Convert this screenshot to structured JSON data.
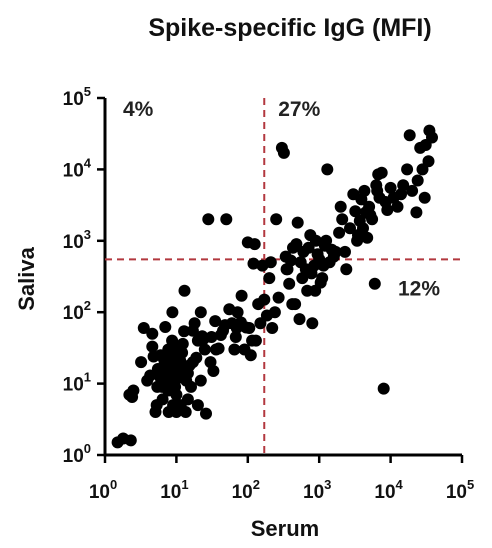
{
  "chart_data": {
    "type": "scatter",
    "title": "Spike-specific IgG (MFI)",
    "xlabel": "Serum",
    "ylabel": "Saliva",
    "xscale": "log",
    "yscale": "log",
    "xlim": [
      1,
      100000
    ],
    "ylim": [
      1,
      100000
    ],
    "x_ticks": [
      {
        "base": "10",
        "exp": "0"
      },
      {
        "base": "10",
        "exp": "1"
      },
      {
        "base": "10",
        "exp": "2"
      },
      {
        "base": "10",
        "exp": "3"
      },
      {
        "base": "10",
        "exp": "4"
      },
      {
        "base": "10",
        "exp": "5"
      }
    ],
    "y_ticks": [
      {
        "base": "10",
        "exp": "0"
      },
      {
        "base": "10",
        "exp": "1"
      },
      {
        "base": "10",
        "exp": "2"
      },
      {
        "base": "10",
        "exp": "3"
      },
      {
        "base": "10",
        "exp": "4"
      },
      {
        "base": "10",
        "exp": "5"
      }
    ],
    "thresholds": {
      "x": 170,
      "y": 550,
      "color": "#b2383f",
      "style": "dashed"
    },
    "quadrant_labels": [
      {
        "text": "4%",
        "quadrant": "top-left"
      },
      {
        "text": "27%",
        "quadrant": "top-right"
      },
      {
        "text": "12%",
        "quadrant": "bottom-right"
      }
    ],
    "marker_color": "#000000",
    "points": [
      [
        1.5,
        1.5
      ],
      [
        1.8,
        1.7
      ],
      [
        2.3,
        1.6
      ],
      [
        2.4,
        6.5
      ],
      [
        2.5,
        8
      ],
      [
        2.2,
        7
      ],
      [
        3.2,
        20
      ],
      [
        3.5,
        60
      ],
      [
        3.9,
        11
      ],
      [
        4.3,
        13
      ],
      [
        4.6,
        50
      ],
      [
        4.6,
        33
      ],
      [
        4.8,
        24
      ],
      [
        5.1,
        4
      ],
      [
        5.4,
        9
      ],
      [
        5.3,
        5
      ],
      [
        5.5,
        16
      ],
      [
        5.8,
        14
      ],
      [
        6.0,
        12
      ],
      [
        6.0,
        25
      ],
      [
        6.3,
        9
      ],
      [
        6.4,
        6
      ],
      [
        6.8,
        18
      ],
      [
        6.8,
        21
      ],
      [
        7.2,
        13
      ],
      [
        7.2,
        16
      ],
      [
        7.0,
        62
      ],
      [
        7.7,
        30
      ],
      [
        7.7,
        8
      ],
      [
        7.8,
        4
      ],
      [
        8.0,
        12
      ],
      [
        8.2,
        10
      ],
      [
        8.3,
        15
      ],
      [
        8.4,
        20
      ],
      [
        8.5,
        9
      ],
      [
        8.6,
        26
      ],
      [
        8.7,
        40
      ],
      [
        8.8,
        100
      ],
      [
        9.0,
        5
      ],
      [
        9.0,
        13
      ],
      [
        9.2,
        18
      ],
      [
        9.5,
        11
      ],
      [
        9.5,
        23
      ],
      [
        9.6,
        9
      ],
      [
        9.8,
        14
      ],
      [
        10.0,
        7
      ],
      [
        10.0,
        4
      ],
      [
        10.3,
        32
      ],
      [
        10.3,
        15
      ],
      [
        10.6,
        12
      ],
      [
        11.0,
        20
      ],
      [
        11.3,
        21
      ],
      [
        11.5,
        5
      ],
      [
        11.8,
        16
      ],
      [
        12.0,
        27
      ],
      [
        12.3,
        36
      ],
      [
        12.8,
        54
      ],
      [
        13.0,
        200
      ],
      [
        13.5,
        4
      ],
      [
        13.7,
        11
      ],
      [
        14.5,
        6
      ],
      [
        14.5,
        14
      ],
      [
        15.3,
        18
      ],
      [
        16.0,
        9
      ],
      [
        17.0,
        20
      ],
      [
        17.0,
        55
      ],
      [
        18.0,
        70
      ],
      [
        19.0,
        23
      ],
      [
        20.0,
        5
      ],
      [
        20.0,
        40
      ],
      [
        22.0,
        11
      ],
      [
        22.0,
        100
      ],
      [
        23.0,
        46
      ],
      [
        24.0,
        42
      ],
      [
        25.0,
        30
      ],
      [
        26.0,
        3.8
      ],
      [
        28.0,
        2000
      ],
      [
        30.0,
        20
      ],
      [
        31.0,
        45
      ],
      [
        33.0,
        15
      ],
      [
        35.0,
        75
      ],
      [
        36.0,
        30
      ],
      [
        39.0,
        31
      ],
      [
        42.0,
        48
      ],
      [
        45.0,
        55
      ],
      [
        48.0,
        66
      ],
      [
        50.0,
        2000
      ],
      [
        55.0,
        110
      ],
      [
        60.0,
        70
      ],
      [
        65.0,
        30
      ],
      [
        68.0,
        45
      ],
      [
        70.0,
        60
      ],
      [
        72.0,
        100
      ],
      [
        80.0,
        72
      ],
      [
        82.0,
        170
      ],
      [
        90.0,
        30
      ],
      [
        95.0,
        61
      ],
      [
        100.0,
        950
      ],
      [
        105.0,
        60
      ],
      [
        110.0,
        25
      ],
      [
        115.0,
        40
      ],
      [
        120.0,
        480
      ],
      [
        125.0,
        900
      ],
      [
        130.0,
        40
      ],
      [
        140.0,
        130
      ],
      [
        150.0,
        70
      ],
      [
        160.0,
        450
      ],
      [
        170.0,
        150
      ],
      [
        185.0,
        90
      ],
      [
        200.0,
        300
      ],
      [
        210.0,
        500
      ],
      [
        220.0,
        60
      ],
      [
        240.0,
        100
      ],
      [
        250.0,
        2000
      ],
      [
        270.0,
        160
      ],
      [
        300.0,
        20000
      ],
      [
        320.0,
        17000
      ],
      [
        340.0,
        600
      ],
      [
        350.0,
        400
      ],
      [
        360.0,
        400
      ],
      [
        380.0,
        250
      ],
      [
        400.0,
        530
      ],
      [
        420.0,
        130
      ],
      [
        430.0,
        800
      ],
      [
        460.0,
        130
      ],
      [
        480.0,
        900
      ],
      [
        500.0,
        1800
      ],
      [
        530.0,
        80
      ],
      [
        550.0,
        500
      ],
      [
        580.0,
        300
      ],
      [
        600.0,
        700
      ],
      [
        650.0,
        400
      ],
      [
        680.0,
        200
      ],
      [
        710.0,
        800
      ],
      [
        750.0,
        1200
      ],
      [
        780.0,
        350
      ],
      [
        800.0,
        70
      ],
      [
        850.0,
        450
      ],
      [
        880.0,
        200
      ],
      [
        900.0,
        1000
      ],
      [
        950.0,
        650
      ],
      [
        1000.0,
        550
      ],
      [
        1050.0,
        260
      ],
      [
        1100.0,
        300
      ],
      [
        1150.0,
        450
      ],
      [
        1200.0,
        850
      ],
      [
        1250.0,
        1000
      ],
      [
        1300.0,
        10000
      ],
      [
        1400.0,
        500
      ],
      [
        1500.0,
        750
      ],
      [
        1600.0,
        600
      ],
      [
        1700.0,
        700
      ],
      [
        1900.0,
        1300
      ],
      [
        2000.0,
        3000
      ],
      [
        2100.0,
        2000
      ],
      [
        2300.0,
        700
      ],
      [
        2400.0,
        400
      ],
      [
        2700.0,
        1500
      ],
      [
        3000.0,
        4500
      ],
      [
        3200.0,
        2600
      ],
      [
        3400.0,
        1000
      ],
      [
        3500.0,
        1200
      ],
      [
        3700.0,
        1900
      ],
      [
        3900.0,
        3800
      ],
      [
        4100.0,
        1500
      ],
      [
        4300.0,
        5000
      ],
      [
        4500.0,
        2500
      ],
      [
        4700.0,
        1100
      ],
      [
        5000.0,
        3000
      ],
      [
        5200.0,
        2300
      ],
      [
        5500.0,
        2000
      ],
      [
        6000.0,
        250
      ],
      [
        6300.0,
        6000
      ],
      [
        6500.0,
        5000
      ],
      [
        6700.0,
        8500
      ],
      [
        7000.0,
        4000
      ],
      [
        7500.0,
        9000
      ],
      [
        8000.0,
        8.5
      ],
      [
        8500.0,
        3500
      ],
      [
        9000.0,
        2700
      ],
      [
        10000.0,
        5500
      ],
      [
        11000.0,
        4000
      ],
      [
        12500.0,
        3000
      ],
      [
        14000.0,
        4500
      ],
      [
        15000.0,
        6000
      ],
      [
        17000.0,
        10000
      ],
      [
        18500.0,
        30000
      ],
      [
        20000.0,
        5000
      ],
      [
        23000.0,
        2500
      ],
      [
        24000.0,
        7000
      ],
      [
        26000.0,
        20000
      ],
      [
        28000.0,
        10000
      ],
      [
        30000.0,
        4000
      ],
      [
        31000.0,
        22000
      ],
      [
        34000.0,
        13000
      ],
      [
        35000.0,
        35000
      ],
      [
        38000.0,
        28000
      ]
    ]
  }
}
